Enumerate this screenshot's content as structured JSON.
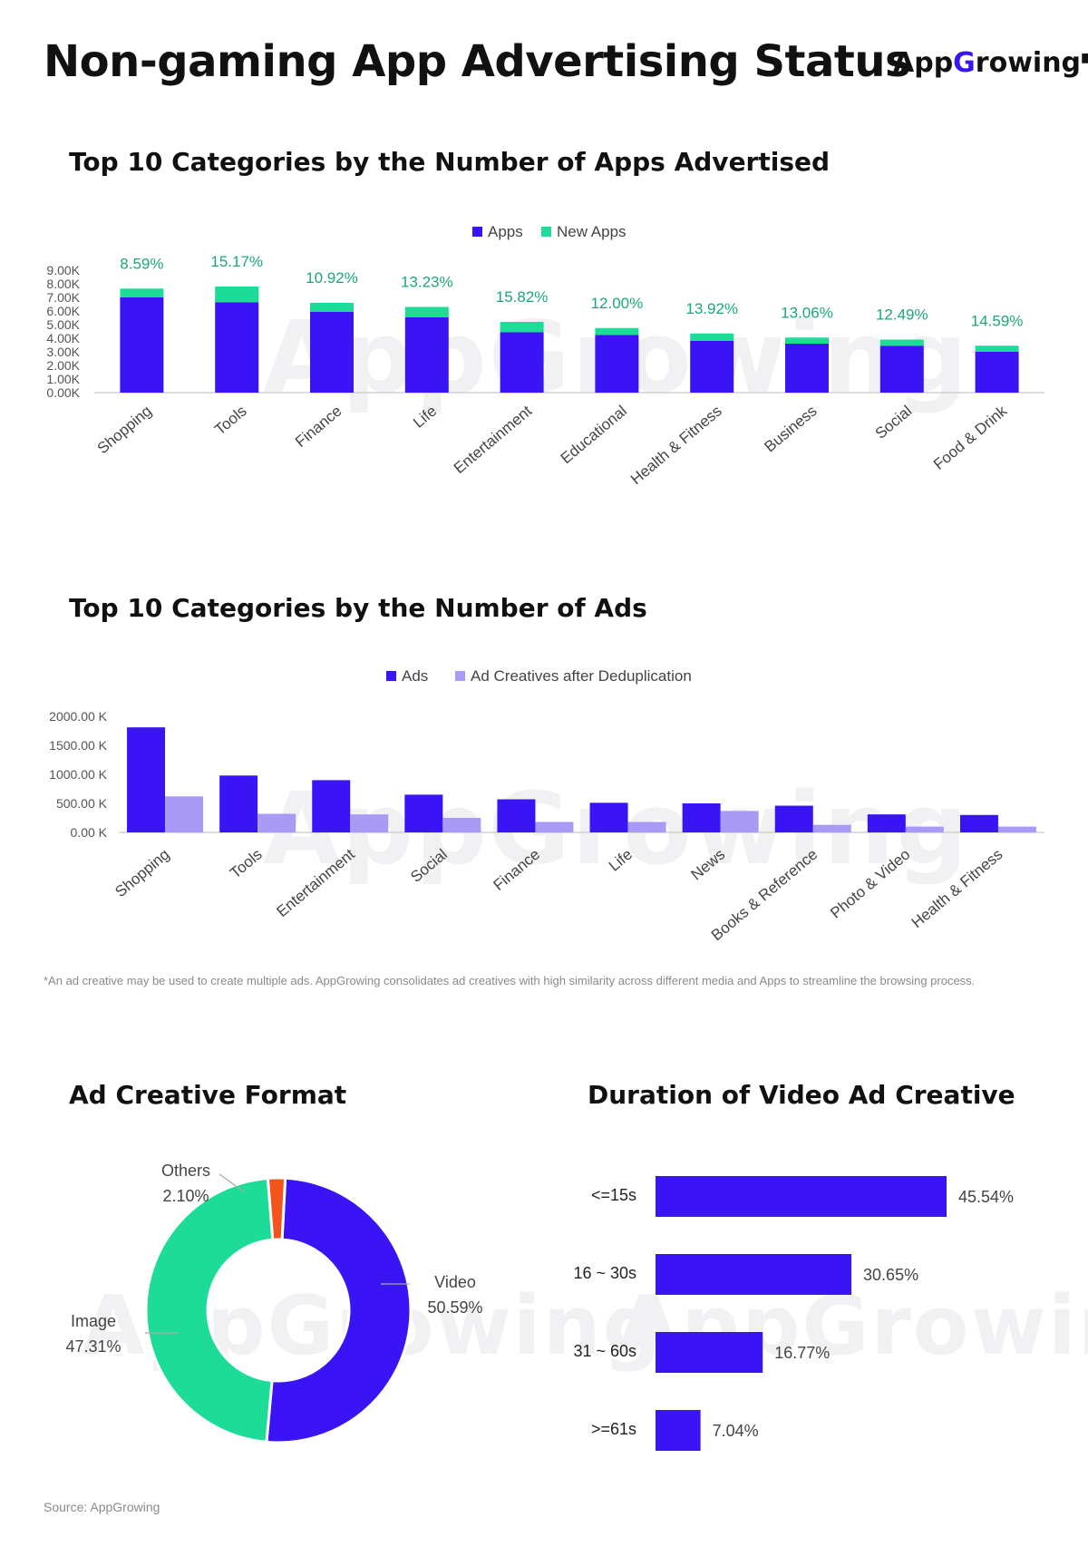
{
  "page": {
    "title": "Non-gaming App Advertising Status",
    "brand": "AppGrowing"
  },
  "sections": {
    "apps": "Top 10 Categories by the Number of Apps Advertised",
    "ads": "Top 10 Categories by the Number of Ads",
    "format": "Ad Creative Format",
    "duration": "Duration of Video Ad Creative"
  },
  "footnote": "*An ad creative may be used to create multiple ads. AppGrowing consolidates ad creatives with high similarity across different media and Apps to streamline the browsing process.",
  "source": "Source: AppGrowing",
  "colors": {
    "primary": "#3a14f5",
    "secondary": "#1ddc98",
    "lavender": "#a99af5",
    "others": "#f2541b",
    "label_green": "#1aa87a"
  },
  "chart_data": [
    {
      "type": "bar",
      "stacked": true,
      "title": "Top 10 Categories by the Number of Apps Advertised",
      "categories": [
        "Shopping",
        "Tools",
        "Finance",
        "Life",
        "Entertainment",
        "Educational",
        "Health & Fitness",
        "Business",
        "Social",
        "Food & Drink"
      ],
      "series": [
        {
          "name": "Apps",
          "values": [
            7000,
            6650,
            5950,
            5550,
            4450,
            4250,
            3800,
            3600,
            3450,
            3000
          ]
        },
        {
          "name": "New Apps",
          "values": [
            650,
            1150,
            650,
            750,
            750,
            500,
            550,
            450,
            450,
            450
          ]
        }
      ],
      "data_labels": [
        "8.59%",
        "15.17%",
        "10.92%",
        "13.23%",
        "15.82%",
        "12.00%",
        "13.92%",
        "13.06%",
        "12.49%",
        "14.59%"
      ],
      "yticks": [
        "0.00K",
        "1.00K",
        "2.00K",
        "3.00K",
        "4.00K",
        "5.00K",
        "6.00K",
        "7.00K",
        "8.00K",
        "9.00K"
      ],
      "ylim": [
        0,
        9000
      ],
      "legend": "top-center"
    },
    {
      "type": "bar",
      "title": "Top 10 Categories by the Number of Ads",
      "categories": [
        "Shopping",
        "Tools",
        "Entertainment",
        "Social",
        "Finance",
        "Life",
        "News",
        "Books & Reference",
        "Photo & Video",
        "Health & Fitness"
      ],
      "series": [
        {
          "name": "Ads",
          "values": [
            1810,
            980,
            900,
            650,
            570,
            510,
            500,
            460,
            310,
            300
          ]
        },
        {
          "name": "Ad Creatives after Deduplication",
          "values": [
            620,
            320,
            310,
            250,
            180,
            180,
            370,
            130,
            100,
            100
          ]
        }
      ],
      "yticks": [
        "0.00 K",
        "500.00 K",
        "1000.00 K",
        "1500.00 K",
        "2000.00 K"
      ],
      "ylim": [
        0,
        2000
      ],
      "legend": "top-center"
    },
    {
      "type": "pie",
      "donut": true,
      "title": "Ad Creative Format",
      "slices": [
        {
          "label": "Video",
          "value": 50.59,
          "text": "50.59%"
        },
        {
          "label": "Image",
          "value": 47.31,
          "text": "47.31%"
        },
        {
          "label": "Others",
          "value": 2.1,
          "text": "2.10%"
        }
      ]
    },
    {
      "type": "bar",
      "orientation": "horizontal",
      "title": "Duration of Video Ad Creative",
      "categories": [
        "<=15s",
        "16 ~ 30s",
        "31 ~ 60s",
        ">=61s"
      ],
      "values": [
        45.54,
        30.65,
        16.77,
        7.04
      ],
      "data_labels": [
        "45.54%",
        "30.65%",
        "16.77%",
        "7.04%"
      ]
    }
  ]
}
